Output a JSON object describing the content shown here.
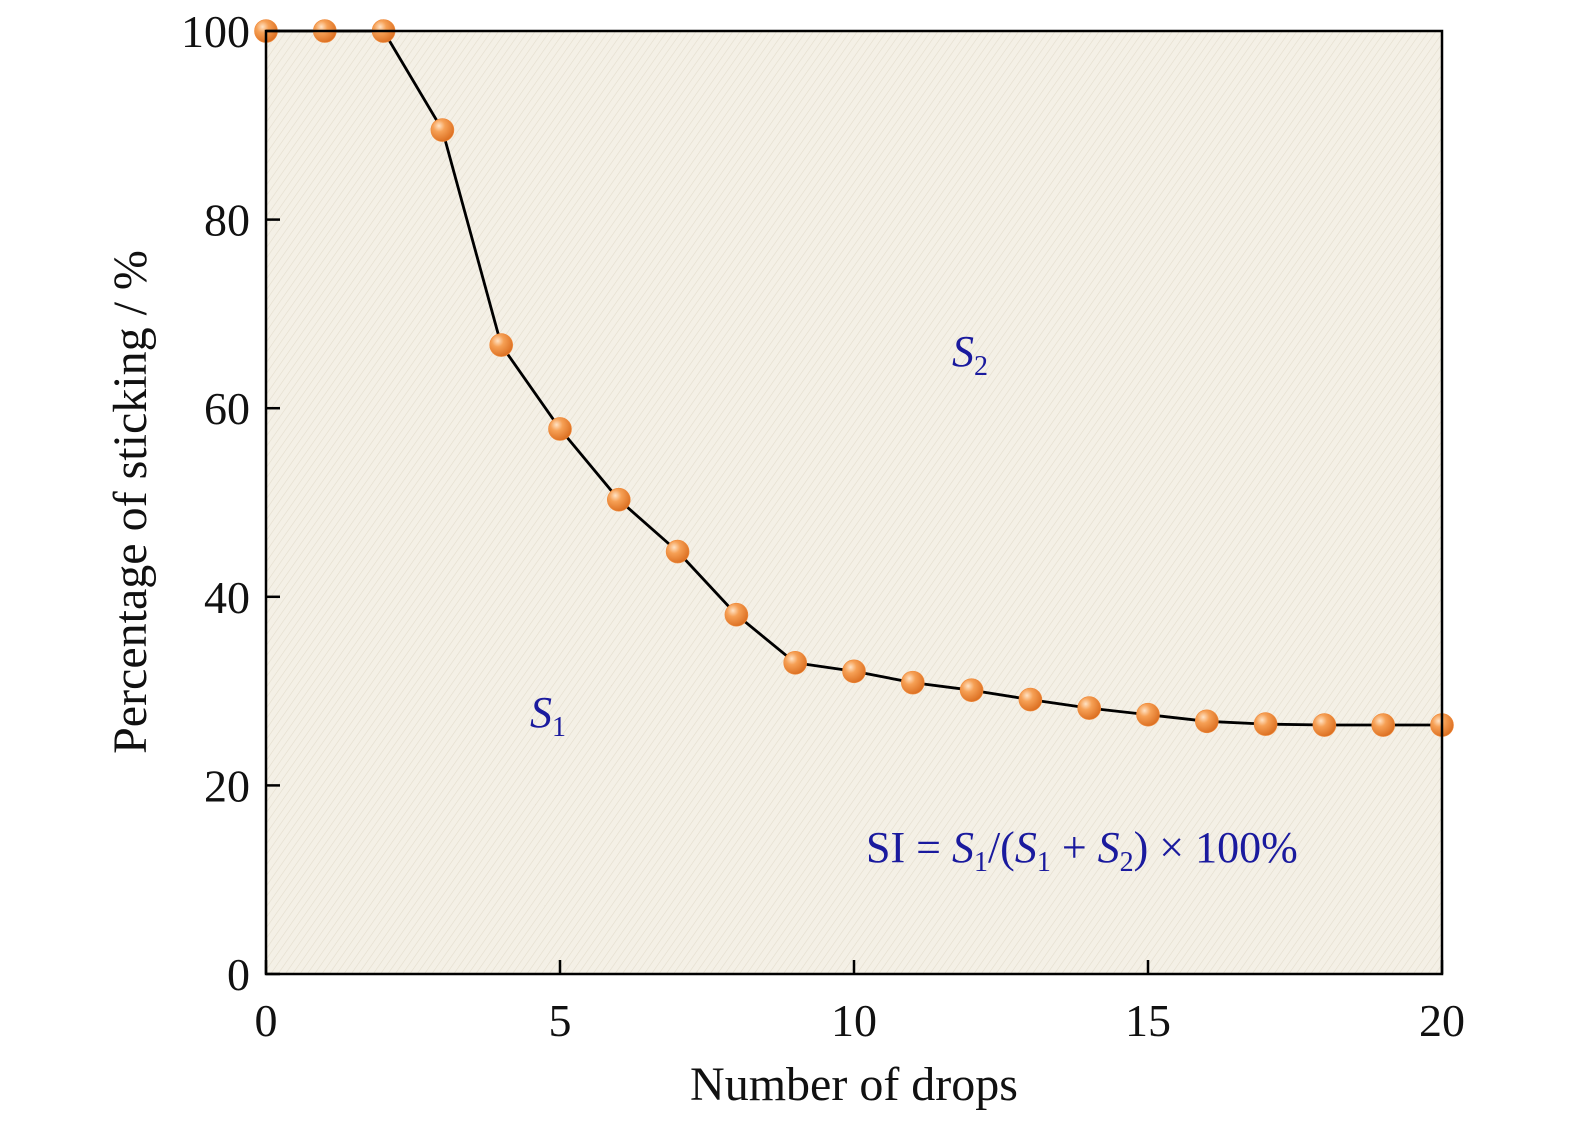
{
  "chart_data": {
    "type": "line",
    "title": "",
    "xlabel": "Number of drops",
    "ylabel": "Percentage of sticking / %",
    "xlim": [
      0,
      20
    ],
    "ylim": [
      0,
      100
    ],
    "x_ticks": [
      "0",
      "5",
      "10",
      "15",
      "20"
    ],
    "y_ticks": [
      "0",
      "20",
      "40",
      "60",
      "80",
      "100"
    ],
    "grid": false,
    "legend": "none",
    "series": [
      {
        "x": [
          0,
          1,
          2,
          3,
          4,
          5,
          6,
          7,
          8,
          9,
          10,
          11,
          12,
          13,
          14,
          15,
          16,
          17,
          18,
          19,
          20
        ],
        "y": [
          100,
          100,
          100,
          89.5,
          66.7,
          57.8,
          50.3,
          44.8,
          38.1,
          33.0,
          32.1,
          30.9,
          30.1,
          29.1,
          28.2,
          27.5,
          26.8,
          26.5,
          26.4,
          26.4,
          26.4
        ],
        "marker_color": "#f08a3a",
        "line_color": "#000000"
      }
    ],
    "annotations": {
      "s2": {
        "main": "S",
        "sub": "2"
      },
      "s1": {
        "main": "S",
        "sub": "1"
      },
      "formula": {
        "prefix": "SI = ",
        "s": "S",
        "one": "1",
        "open": "/(",
        "plus": " + ",
        "two": "2",
        "close": ") × 100%"
      }
    },
    "colors": {
      "plot_background": "#f4f0e6",
      "annotation_text": "#1a1a9e"
    }
  }
}
